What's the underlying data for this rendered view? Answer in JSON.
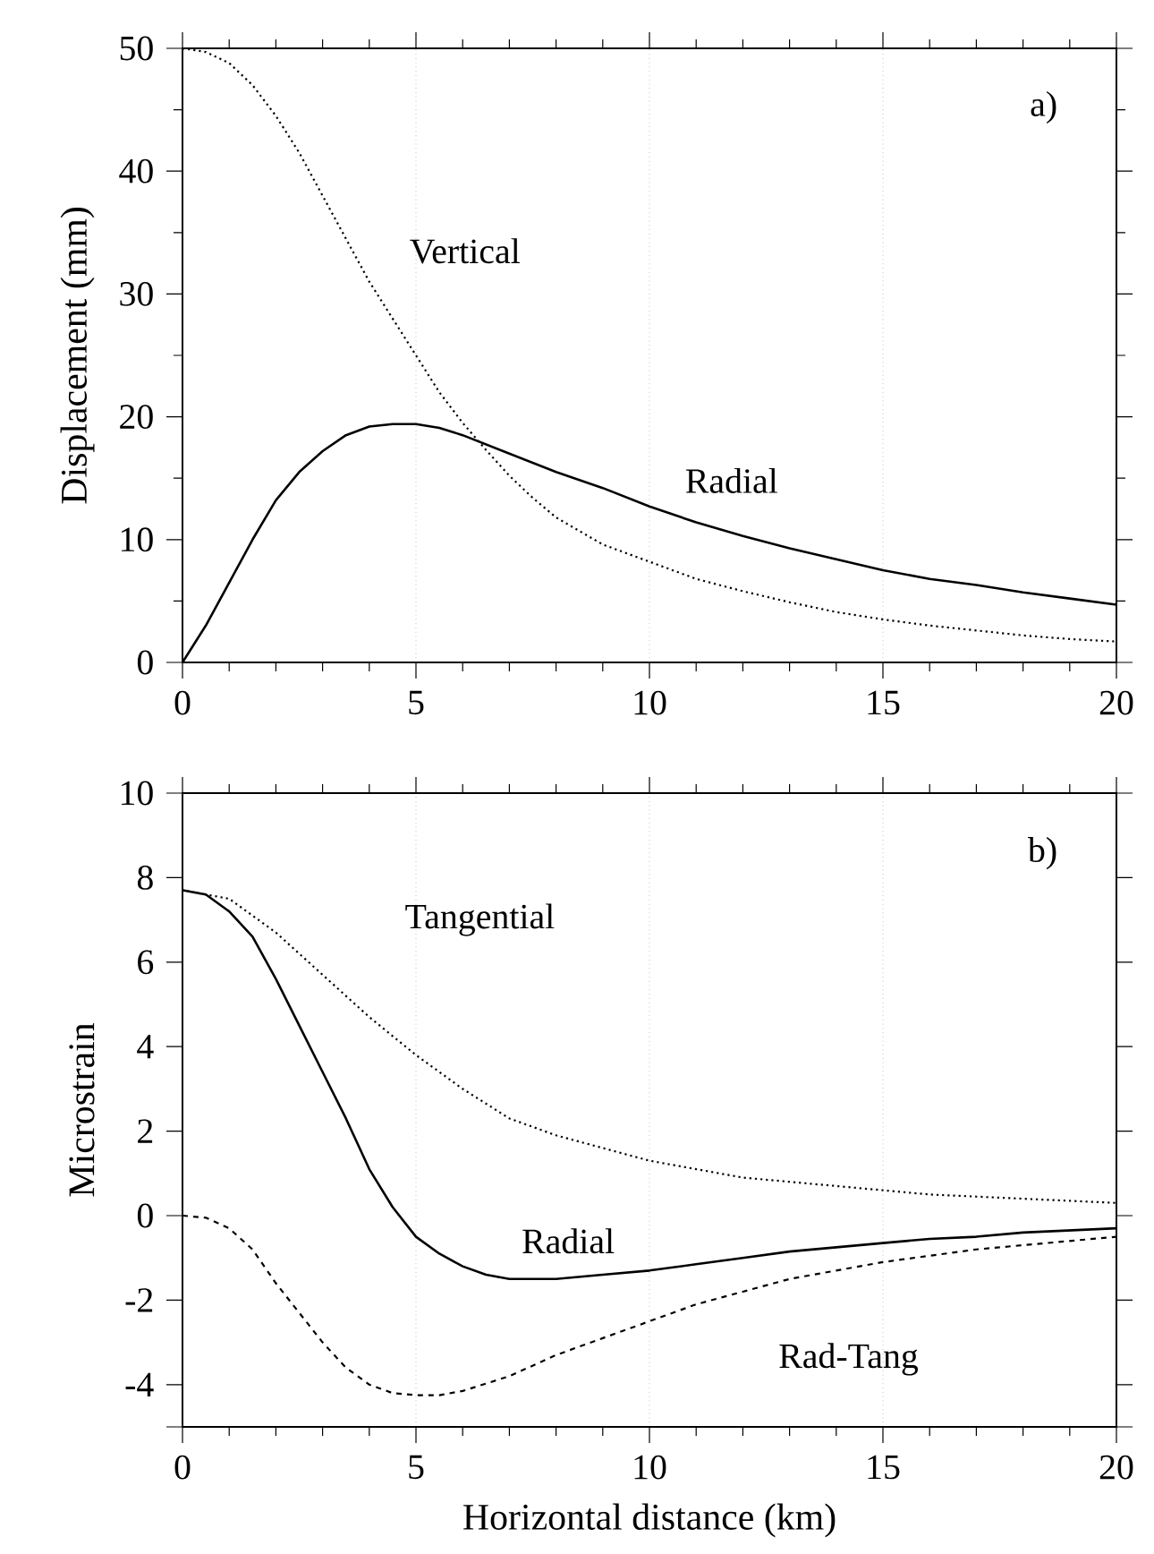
{
  "chart_data": [
    {
      "type": "line",
      "ylabel": "Displacement (mm)",
      "annotations": [
        "a)"
      ],
      "xlim": [
        0,
        20
      ],
      "xticks": [
        0,
        5,
        10,
        15,
        20
      ],
      "ylim": [
        0,
        50
      ],
      "yticks": [
        0,
        10,
        20,
        30,
        40,
        50
      ],
      "grid": "x",
      "series": [
        {
          "name": "Vertical",
          "color": "#000000",
          "line_style": "dotted",
          "x": [
            0,
            0.5,
            1,
            1.5,
            2,
            2.5,
            3,
            3.5,
            4,
            4.5,
            5,
            5.5,
            6,
            6.5,
            7,
            7.5,
            8,
            9,
            10,
            11,
            12,
            13,
            14,
            15,
            16,
            17,
            18,
            19,
            20
          ],
          "values": [
            50,
            49.7,
            48.8,
            47,
            44.5,
            41.5,
            38,
            34.5,
            31,
            28,
            25,
            22,
            19.5,
            17.3,
            15.2,
            13.4,
            11.8,
            9.6,
            8.2,
            6.8,
            5.8,
            4.9,
            4.1,
            3.5,
            3,
            2.6,
            2.2,
            1.9,
            1.7
          ]
        },
        {
          "name": "Radial",
          "color": "#000000",
          "line_style": "solid",
          "x": [
            0,
            0.5,
            1,
            1.5,
            2,
            2.5,
            3,
            3.5,
            4,
            4.5,
            5,
            5.5,
            6,
            7,
            8,
            9,
            10,
            11,
            12,
            13,
            14,
            15,
            16,
            17,
            18,
            19,
            20
          ],
          "values": [
            0,
            3,
            6.5,
            10,
            13.2,
            15.5,
            17.2,
            18.5,
            19.2,
            19.4,
            19.4,
            19.1,
            18.5,
            17,
            15.5,
            14.2,
            12.7,
            11.4,
            10.3,
            9.3,
            8.4,
            7.5,
            6.8,
            6.3,
            5.7,
            5.2,
            4.7
          ]
        }
      ]
    },
    {
      "type": "line",
      "xlabel": "Horizontal distance (km)",
      "ylabel": "Microstrain",
      "annotations": [
        "b)"
      ],
      "xlim": [
        0,
        20
      ],
      "xticks": [
        0,
        5,
        10,
        15,
        20
      ],
      "ylim": [
        -5,
        10
      ],
      "yticks": [
        {
          "value": -5,
          "label": null
        },
        -4,
        -2,
        0,
        2,
        4,
        6,
        8,
        10
      ],
      "grid": "x",
      "series": [
        {
          "name": "Tangential",
          "color": "#000000",
          "line_style": "dotted",
          "x": [
            0,
            1,
            2,
            3,
            4,
            5,
            6,
            7,
            8,
            9,
            10,
            11,
            12,
            13,
            14,
            15,
            16,
            17,
            18,
            19,
            20
          ],
          "values": [
            7.7,
            7.5,
            6.7,
            5.7,
            4.7,
            3.8,
            3.0,
            2.3,
            1.9,
            1.6,
            1.3,
            1.1,
            0.9,
            0.8,
            0.7,
            0.6,
            0.5,
            0.45,
            0.4,
            0.35,
            0.3
          ]
        },
        {
          "name": "Radial",
          "color": "#000000",
          "line_style": "solid",
          "x": [
            0,
            0.5,
            1,
            1.5,
            2,
            2.5,
            3,
            3.5,
            4,
            4.5,
            5,
            5.5,
            6,
            6.5,
            7,
            8,
            9,
            10,
            11,
            12,
            13,
            14,
            15,
            16,
            17,
            18,
            19,
            20
          ],
          "values": [
            7.7,
            7.6,
            7.2,
            6.6,
            5.6,
            4.5,
            3.4,
            2.3,
            1.1,
            0.2,
            -0.5,
            -0.9,
            -1.2,
            -1.4,
            -1.5,
            -1.5,
            -1.4,
            -1.3,
            -1.15,
            -1.0,
            -0.85,
            -0.75,
            -0.65,
            -0.55,
            -0.5,
            -0.4,
            -0.35,
            -0.3
          ]
        },
        {
          "name": "Rad-Tang",
          "color": "#000000",
          "line_style": "dashed",
          "x": [
            0,
            0.5,
            1,
            1.5,
            2,
            2.5,
            3,
            3.5,
            4,
            4.5,
            5,
            5.5,
            6,
            7,
            8,
            9,
            10,
            11,
            12,
            13,
            14,
            15,
            16,
            17,
            18,
            19,
            20
          ],
          "values": [
            0,
            -0.05,
            -0.3,
            -0.8,
            -1.6,
            -2.3,
            -3.0,
            -3.6,
            -4.0,
            -4.2,
            -4.25,
            -4.25,
            -4.15,
            -3.8,
            -3.3,
            -2.9,
            -2.5,
            -2.1,
            -1.8,
            -1.5,
            -1.3,
            -1.1,
            -0.95,
            -0.8,
            -0.7,
            -0.6,
            -0.5
          ]
        }
      ]
    }
  ]
}
